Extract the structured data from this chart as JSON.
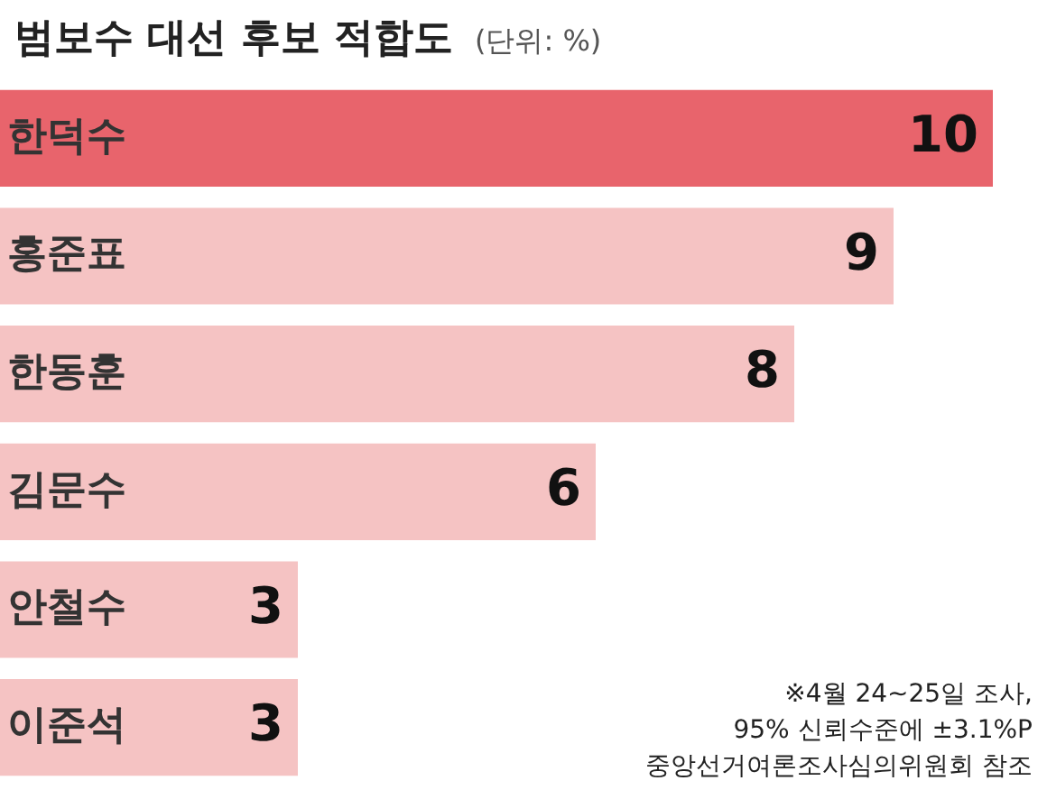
{
  "chart_data": {
    "type": "bar",
    "orientation": "horizontal",
    "title": "범보수 대선 후보 적합도",
    "subtitle": "(단위: %)",
    "categories": [
      "한덕수",
      "홍준표",
      "한동훈",
      "김문수",
      "안철수",
      "이준석"
    ],
    "values": [
      10,
      9,
      8,
      6,
      3,
      3
    ],
    "colors": [
      "#e8646c",
      "#f5c3c3",
      "#f5c3c3",
      "#f5c3c3",
      "#f5c3c3",
      "#f5c3c3"
    ],
    "data_labels": true,
    "annotations": [
      "※4월 24~25일 조사,",
      "95% 신뢰수준에 ±3.1%P",
      "중앙선거여론조사심의위원회 참조"
    ]
  }
}
